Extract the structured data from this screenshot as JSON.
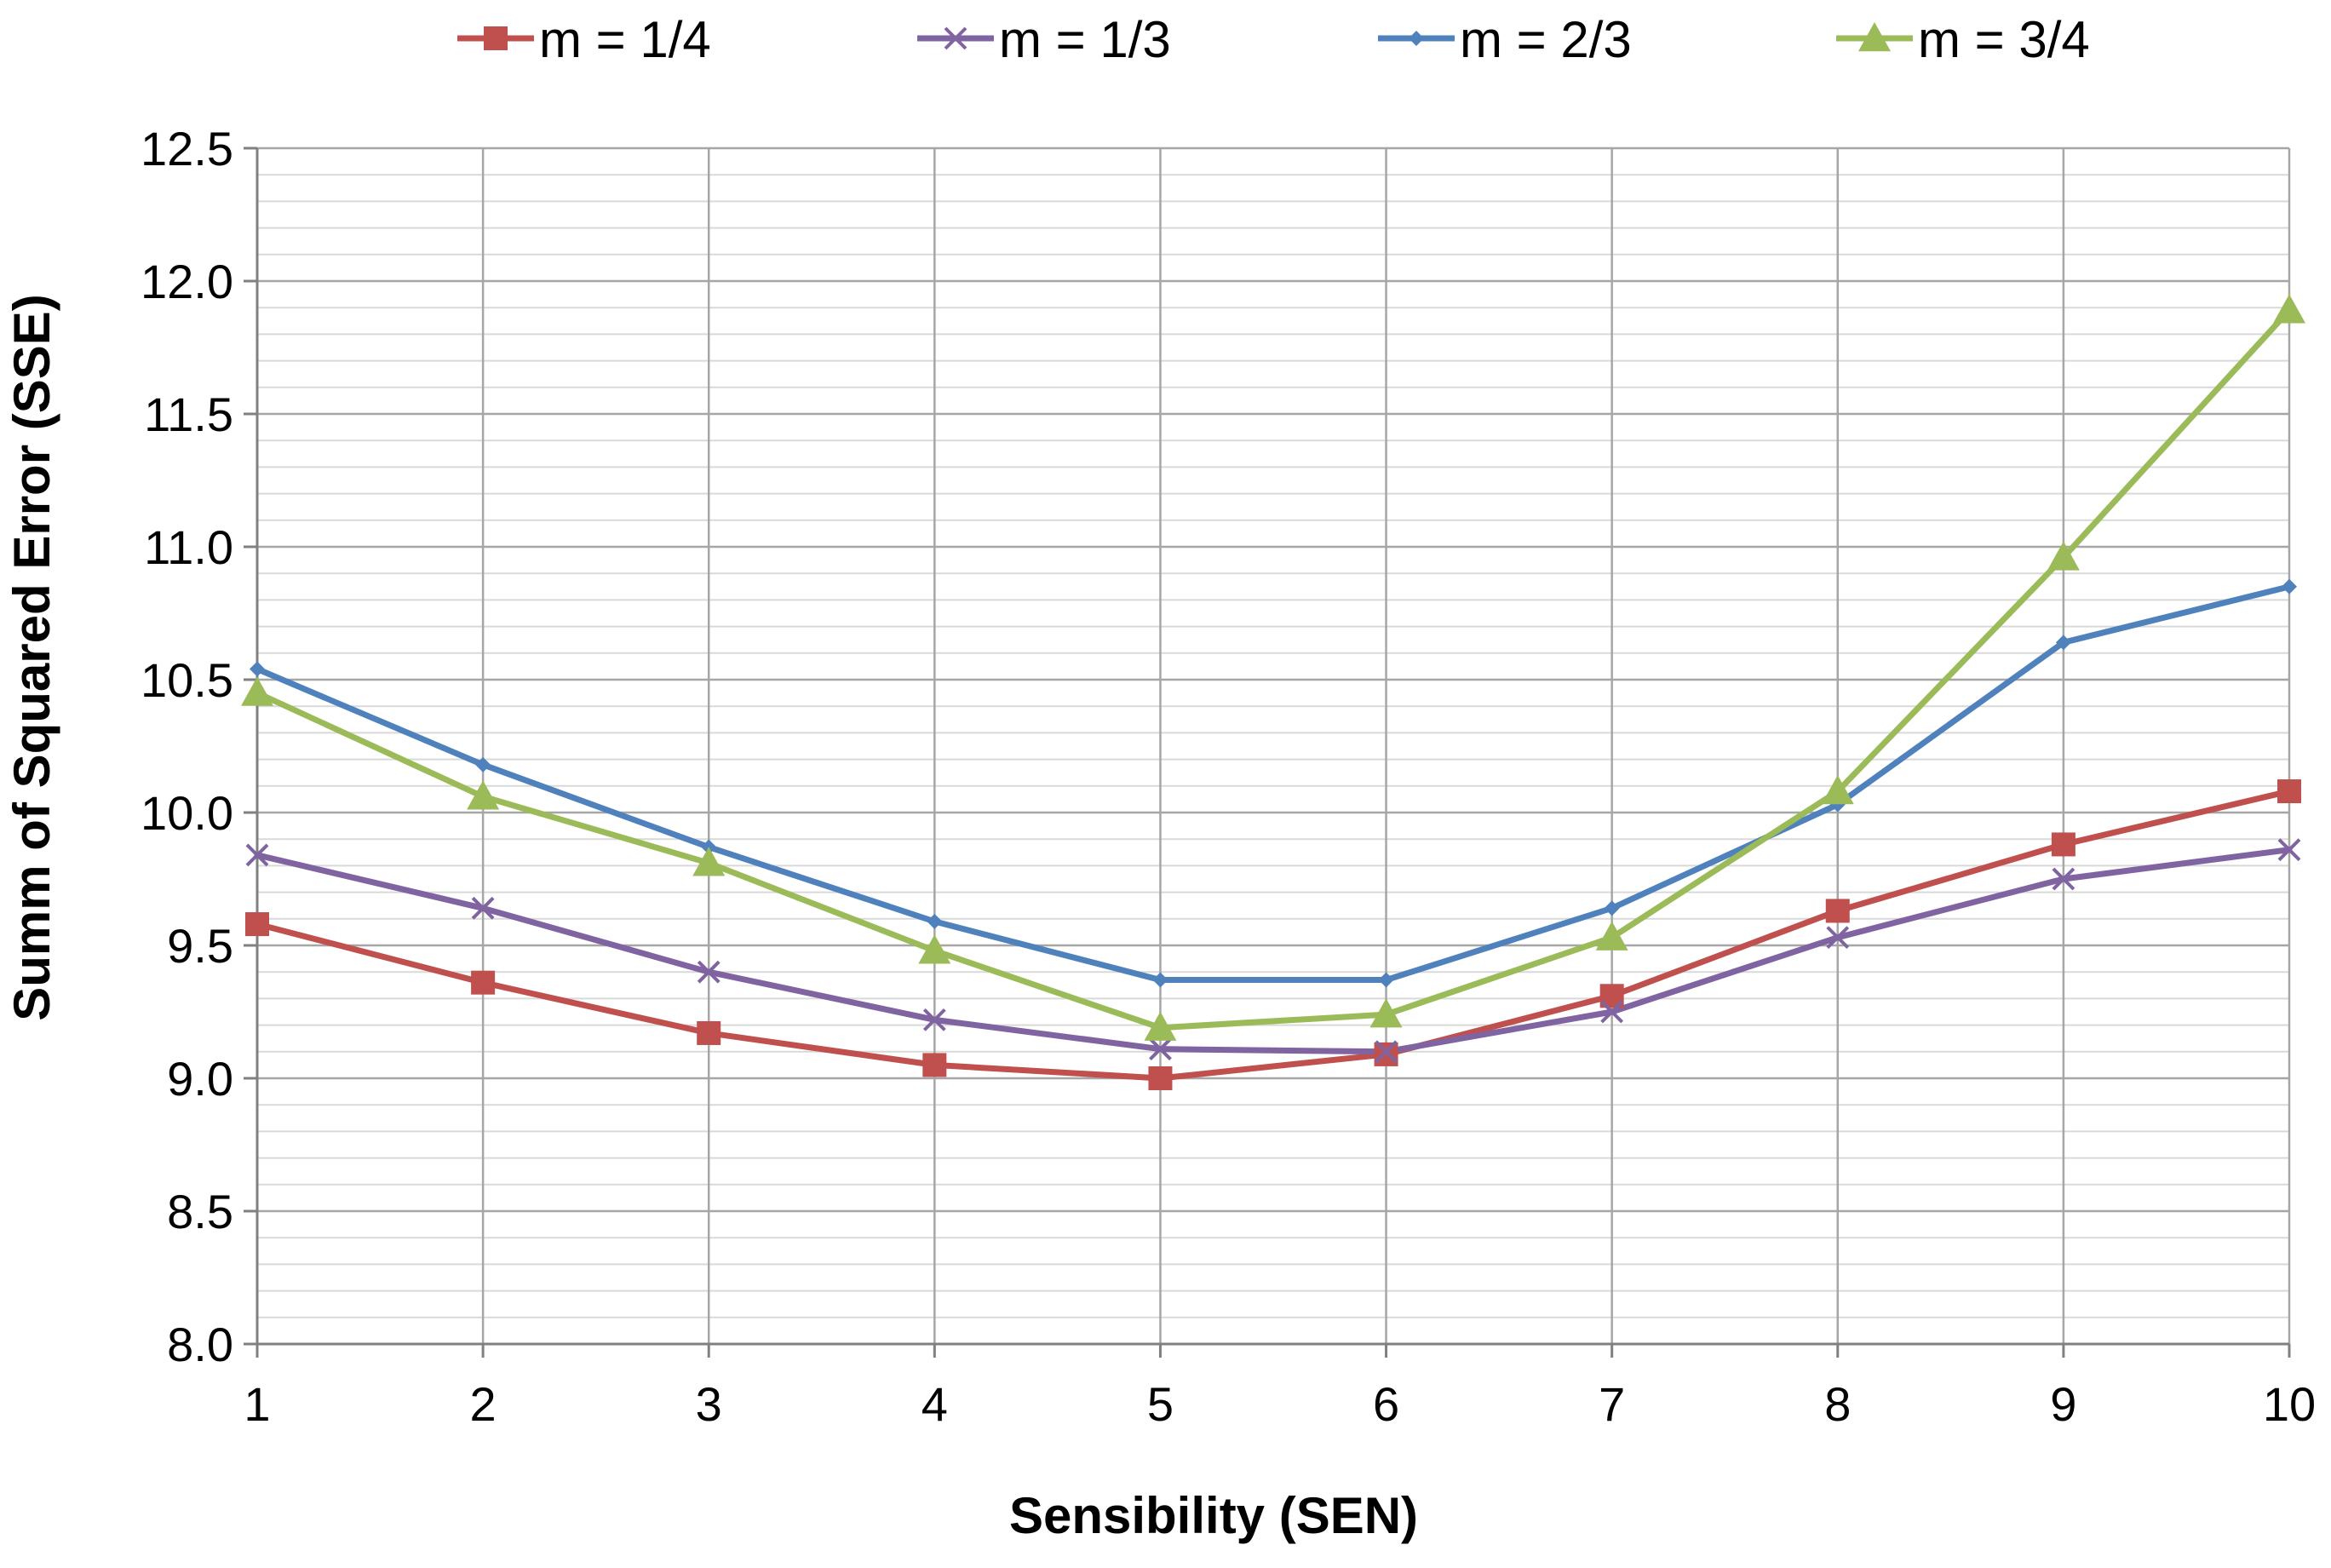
{
  "chart_data": {
    "type": "line",
    "title": "",
    "xlabel": "Sensibility (SEN)",
    "ylabel": "Summ of Squared Error (SSE)",
    "x": [
      1,
      2,
      3,
      4,
      5,
      6,
      7,
      8,
      9,
      10
    ],
    "xlim": [
      1,
      10
    ],
    "ylim": [
      8.0,
      12.5
    ],
    "y_major_ticks": [
      "8.0",
      "8.5",
      "9.0",
      "9.5",
      "10.0",
      "10.5",
      "11.0",
      "11.5",
      "12.0",
      "12.5"
    ],
    "x_ticks": [
      "1",
      "2",
      "3",
      "4",
      "5",
      "6",
      "7",
      "8",
      "9",
      "10"
    ],
    "minor_grid_step": 0.1,
    "grid": true,
    "legend_position": "top",
    "series": [
      {
        "name": "m = 1/4",
        "color": "#C0504D",
        "marker": "square",
        "values": [
          9.58,
          9.36,
          9.17,
          9.05,
          9.0,
          9.09,
          9.31,
          9.63,
          9.88,
          10.08
        ]
      },
      {
        "name": "m = 1/3",
        "color": "#8064A2",
        "marker": "x",
        "values": [
          9.84,
          9.64,
          9.4,
          9.22,
          9.11,
          9.1,
          9.25,
          9.53,
          9.75,
          9.86
        ]
      },
      {
        "name": "m = 2/3",
        "color": "#4F81BD",
        "marker": "diamond",
        "values": [
          10.54,
          10.18,
          9.87,
          9.59,
          9.37,
          9.37,
          9.64,
          10.03,
          10.64,
          10.85
        ]
      },
      {
        "name": "m = 3/4",
        "color": "#9BBB59",
        "marker": "triangle",
        "values": [
          10.45,
          10.06,
          9.81,
          9.48,
          9.19,
          9.24,
          9.53,
          10.08,
          10.96,
          11.89
        ]
      }
    ]
  }
}
